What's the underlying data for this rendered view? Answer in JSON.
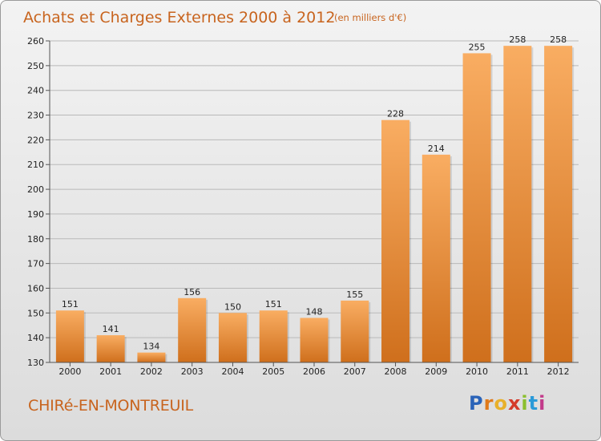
{
  "title": "Achats et Charges Externes 2000 à 2012",
  "subtitle": "(en milliers d'€)",
  "commune": "CHIRé-EN-MONTREUIL",
  "logo_text": "Proxiti",
  "colors": {
    "bar_light": "#f7a85a",
    "bar_dark": "#d2721e",
    "title": "#c8641e"
  },
  "chart_data": {
    "type": "bar",
    "categories": [
      "2000",
      "2001",
      "2002",
      "2003",
      "2004",
      "2005",
      "2006",
      "2007",
      "2008",
      "2009",
      "2010",
      "2011",
      "2012"
    ],
    "values": [
      151,
      141,
      134,
      156,
      150,
      151,
      148,
      155,
      228,
      214,
      255,
      258,
      258
    ],
    "ylim": [
      130,
      260
    ],
    "yticks": [
      130,
      140,
      150,
      160,
      170,
      180,
      190,
      200,
      210,
      220,
      230,
      240,
      250,
      260
    ],
    "grid": true
  }
}
